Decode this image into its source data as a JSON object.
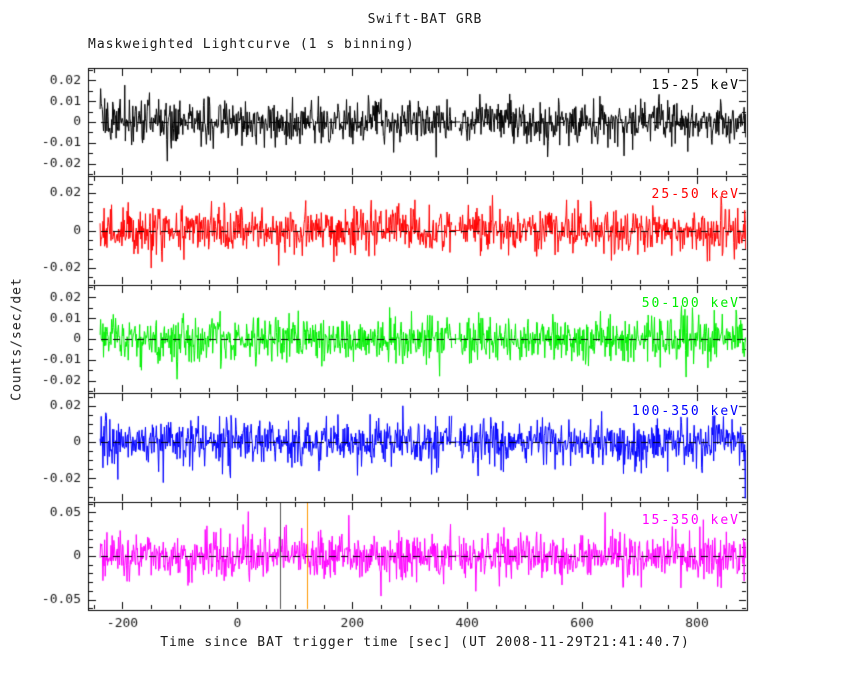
{
  "chart_data": {
    "type": "line",
    "title": "Swift-BAT GRB",
    "subtitle": "Maskweighted Lightcurve (1 s binning)",
    "xlabel": "Time since BAT trigger time [sec] (UT 2008-11-29T21:41:40.7)",
    "ylabel": "Counts/sec/det",
    "xlim": [
      -260,
      887
    ],
    "xticks": [
      -200,
      0,
      200,
      400,
      600,
      800
    ],
    "x_minor_step": 50,
    "x_range_data": [
      -239,
      886
    ],
    "binning_sec": 1,
    "grid": false,
    "zero_line_style": "dashed",
    "gap": {
      "start": 373,
      "end": 386,
      "marker_x": 379.5
    },
    "panels": [
      {
        "label": "15-25 keV",
        "color": "#000000",
        "ylim": [
          -0.026,
          0.026
        ],
        "yticks": [
          "0.02",
          "0.01",
          "0",
          "-0.01",
          "-0.02"
        ],
        "y_minor_step": 0.005,
        "noise_mean": 0,
        "noise_sigma": 0.0052,
        "seed": 11
      },
      {
        "label": "25-50 keV",
        "color": "#ff0000",
        "ylim": [
          -0.029,
          0.029
        ],
        "yticks": [
          "0.02",
          "0",
          "-0.02"
        ],
        "y_minor_step": 0.005,
        "noise_mean": 0,
        "noise_sigma": 0.0062,
        "seed": 22
      },
      {
        "label": "50-100 keV",
        "color": "#00ee00",
        "ylim": [
          -0.026,
          0.026
        ],
        "yticks": [
          "0.02",
          "0.01",
          "0",
          "-0.01",
          "-0.02"
        ],
        "y_minor_step": 0.005,
        "noise_mean": 0,
        "noise_sigma": 0.0057,
        "seed": 33
      },
      {
        "label": "100-350 keV",
        "color": "#0000ff",
        "ylim": [
          -0.033,
          0.027
        ],
        "yticks": [
          "0.02",
          "0",
          "-0.02"
        ],
        "y_minor_step": 0.005,
        "noise_mean": 0,
        "noise_sigma": 0.0062,
        "seed": 44,
        "spikes": [
          {
            "x": 884,
            "y": -0.031
          }
        ]
      },
      {
        "label": "15-350 keV",
        "color": "#ff00ff",
        "ylim": [
          -0.062,
          0.062
        ],
        "yticks": [
          "0.05",
          "0",
          "-0.05"
        ],
        "y_minor_step": 0.01,
        "noise_mean": 0,
        "noise_sigma": 0.0135,
        "seed": 55,
        "spikes": [
          {
            "x": 19,
            "y": 0.051
          },
          {
            "x": 640,
            "y": 0.05
          },
          {
            "x": 250,
            "y": -0.046
          }
        ],
        "vertical_markers": [
          {
            "x": 75,
            "color": "#555555"
          },
          {
            "x": 121,
            "color": "#ff9900"
          }
        ]
      }
    ]
  }
}
